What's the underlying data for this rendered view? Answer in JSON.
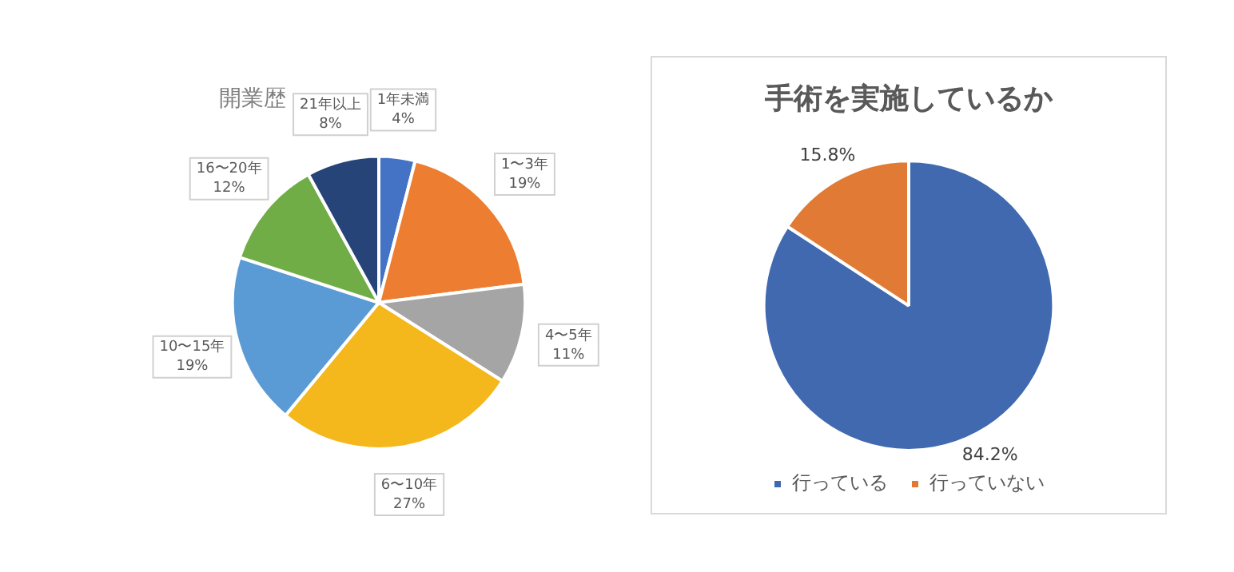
{
  "chart_data": [
    {
      "type": "pie",
      "title": "開業歴",
      "categories": [
        "1年未満",
        "1〜3年",
        "4〜5年",
        "6〜10年",
        "10〜15年",
        "16〜20年",
        "21年以上"
      ],
      "values": [
        4,
        19,
        11,
        27,
        19,
        12,
        8
      ],
      "colors": [
        "#4472c4",
        "#ed7d31",
        "#a5a5a5",
        "#f4b81c",
        "#5b9bd5",
        "#70ad47",
        "#264478"
      ],
      "value_labels": [
        "4%",
        "19%",
        "11%",
        "27%",
        "19%",
        "12%",
        "8%"
      ],
      "legend": false
    },
    {
      "type": "pie",
      "title": "手術を実施しているか",
      "categories": [
        "行っている",
        "行っていない"
      ],
      "values": [
        84.2,
        15.8
      ],
      "colors": [
        "#4169b0",
        "#e07a34"
      ],
      "value_labels": [
        "84.2%",
        "15.8%"
      ],
      "legend": "bottom"
    }
  ]
}
